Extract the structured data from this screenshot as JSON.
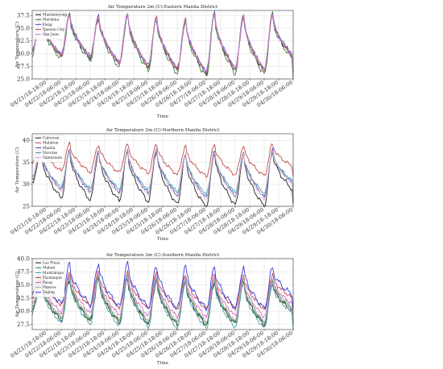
{
  "chart_data": [
    {
      "type": "line",
      "title": "Air Temperature 2m (C)-Eastern Manila District",
      "xlabel": "Time",
      "ylabel": "Air Temperature (C)",
      "ylim": [
        25.0,
        38.5
      ],
      "yticks": [
        25.0,
        27.5,
        30.0,
        32.5,
        35.0,
        37.5
      ],
      "ytick_labels": [
        "25.0",
        "27.5",
        "30.0",
        "32.5",
        "35.0",
        "37.5"
      ],
      "x_tick_labels": [
        "04/21/18-18:00",
        "04/22/18-06:00",
        "04/22/18-18:00",
        "04/23/18-06:00",
        "04/23/18-18:00",
        "04/24/18-06:00",
        "04/24/18-18:00",
        "04/25/18-06:00",
        "04/25/18-18:00",
        "04/26/18-06:00",
        "04/26/18-18:00",
        "04/27/18-06:00",
        "04/27/18-18:00",
        "04/28/18-06:00",
        "04/28/18-18:00",
        "04/29/18-06:00",
        "04/29/18-18:00",
        "04/30/18-06:00"
      ],
      "grid": true,
      "legend_position": "top-left",
      "series": [
        {
          "name": "Mandaluyong",
          "color": "#222222",
          "amp": 1.0,
          "offset": 0.0,
          "wob": 1.0
        },
        {
          "name": "Marikina",
          "color": "#3a8a3a",
          "amp": 1.08,
          "offset": -0.3,
          "wob": -1.0
        },
        {
          "name": "Pasig",
          "color": "#5a5ad6",
          "amp": 1.0,
          "offset": 0.2,
          "wob": 0.6
        },
        {
          "name": "Quezon City",
          "color": "#c06060",
          "amp": 1.02,
          "offset": 0.1,
          "wob": -0.5
        },
        {
          "name": "San Juan",
          "color": "#c880d8",
          "amp": 0.98,
          "offset": 0.15,
          "wob": 0.3
        }
      ],
      "days": [
        {
          "min": 29.5,
          "max": 37.5
        },
        {
          "min": 29.2,
          "max": 37.6
        },
        {
          "min": 28.0,
          "max": 37.2
        },
        {
          "min": 27.4,
          "max": 37.6
        },
        {
          "min": 26.8,
          "max": 37.0
        },
        {
          "min": 26.2,
          "max": 36.6
        },
        {
          "min": 26.8,
          "max": 37.8
        },
        {
          "min": 26.6,
          "max": 37.4
        },
        {
          "min": 26.4,
          "max": 37.6
        }
      ],
      "start_temp": 30.3,
      "end_temp": 29.3
    },
    {
      "type": "line",
      "title": "Air Temperature 2m (C)-Northern Manila District",
      "xlabel": "Time",
      "ylabel": "Air Temperature (C)",
      "ylim": [
        25.0,
        41.5
      ],
      "yticks": [
        25,
        30,
        35,
        40
      ],
      "ytick_labels": [
        "25",
        "30",
        "35",
        "40"
      ],
      "x_tick_labels": [
        "04/21/18-18:00",
        "04/22/18-06:00",
        "04/22/18-18:00",
        "04/23/18-06:00",
        "04/23/18-18:00",
        "04/24/18-06:00",
        "04/24/18-18:00",
        "04/25/18-06:00",
        "04/25/18-18:00",
        "04/26/18-06:00",
        "04/26/18-18:00",
        "04/27/18-06:00",
        "04/27/18-18:00",
        "04/28/18-06:00",
        "04/28/18-18:00",
        "04/29/18-06:00",
        "04/29/18-18:00",
        "04/30/18-06:00"
      ],
      "grid": true,
      "legend_position": "top-left",
      "series": [
        {
          "name": "Caloocan",
          "color": "#222222",
          "amp": 1.08,
          "offset": -0.8,
          "wob": 0.8
        },
        {
          "name": "Malabon",
          "color": "#c0504d",
          "amp": 0.62,
          "offset": 3.4,
          "wob": -0.6
        },
        {
          "name": "Manila",
          "color": "#4a4ab8",
          "amp": 0.92,
          "offset": 0.4,
          "wob": 0.6
        },
        {
          "name": "Navotas",
          "color": "#4aa0a8",
          "amp": 0.82,
          "offset": 0.6,
          "wob": -0.4
        },
        {
          "name": "Valenzuela",
          "color": "#d8a8d0",
          "amp": 0.95,
          "offset": 0.2,
          "wob": 0.3
        }
      ],
      "days": [
        {
          "min": 28.0,
          "max": 38.0
        },
        {
          "min": 27.5,
          "max": 38.0
        },
        {
          "min": 27.4,
          "max": 37.6
        },
        {
          "min": 27.2,
          "max": 37.8
        },
        {
          "min": 26.6,
          "max": 38.0
        },
        {
          "min": 26.0,
          "max": 37.0
        },
        {
          "min": 26.5,
          "max": 37.6
        },
        {
          "min": 26.2,
          "max": 37.2
        },
        {
          "min": 26.4,
          "max": 37.8
        }
      ],
      "start_temp": 30.8,
      "end_temp": 29.6
    },
    {
      "type": "line",
      "title": "Air Temperature 2m (C)-Southern Manila District",
      "xlabel": "Time",
      "ylabel": "Air Temperature (C)",
      "ylim": [
        26.5,
        40.0
      ],
      "yticks": [
        27.5,
        30.0,
        32.5,
        35.0,
        37.5,
        40.0
      ],
      "ytick_labels": [
        "27.5",
        "30.0",
        "32.5",
        "35.0",
        "37.5",
        "40.0"
      ],
      "x_tick_labels": [
        "04/21/18-18:00",
        "04/22/18-06:00",
        "04/22/18-18:00",
        "04/23/18-06:00",
        "04/23/18-18:00",
        "04/24/18-06:00",
        "04/24/18-18:00",
        "04/25/18-06:00",
        "04/25/18-18:00",
        "04/26/18-06:00",
        "04/26/18-18:00",
        "04/27/18-06:00",
        "04/27/18-18:00",
        "04/28/18-06:00",
        "04/28/18-18:00",
        "04/29/18-06:00",
        "04/29/18-18:00",
        "04/30/18-06:00"
      ],
      "grid": true,
      "legend_position": "top-left",
      "series": [
        {
          "name": "Las Pinas",
          "color": "#222222",
          "amp": 0.92,
          "offset": -0.6,
          "wob": 0.7
        },
        {
          "name": "Makati",
          "color": "#3a8a3a",
          "amp": 0.95,
          "offset": -0.2,
          "wob": -0.6
        },
        {
          "name": "Muntinlupa",
          "color": "#4aa0a8",
          "amp": 1.0,
          "offset": -0.9,
          "wob": 0.5
        },
        {
          "name": "Paranaque",
          "color": "#c0504d",
          "amp": 0.75,
          "offset": 1.6,
          "wob": -0.4
        },
        {
          "name": "Pasay",
          "color": "#d868c8",
          "amp": 0.85,
          "offset": 0.6,
          "wob": 0.4
        },
        {
          "name": "Pateros",
          "color": "#a8a8a8",
          "amp": 0.95,
          "offset": 0.1,
          "wob": -0.3
        },
        {
          "name": "Taguig",
          "color": "#3a3ae0",
          "amp": 0.9,
          "offset": 2.4,
          "wob": 0.9
        }
      ],
      "days": [
        {
          "min": 28.6,
          "max": 36.6
        },
        {
          "min": 28.4,
          "max": 37.0
        },
        {
          "min": 28.0,
          "max": 37.2
        },
        {
          "min": 27.8,
          "max": 37.2
        },
        {
          "min": 27.6,
          "max": 36.8
        },
        {
          "min": 27.6,
          "max": 36.6
        },
        {
          "min": 27.8,
          "max": 36.4
        },
        {
          "min": 27.6,
          "max": 36.4
        },
        {
          "min": 27.8,
          "max": 36.2
        }
      ],
      "start_temp": 30.6,
      "end_temp": 30.4
    }
  ]
}
